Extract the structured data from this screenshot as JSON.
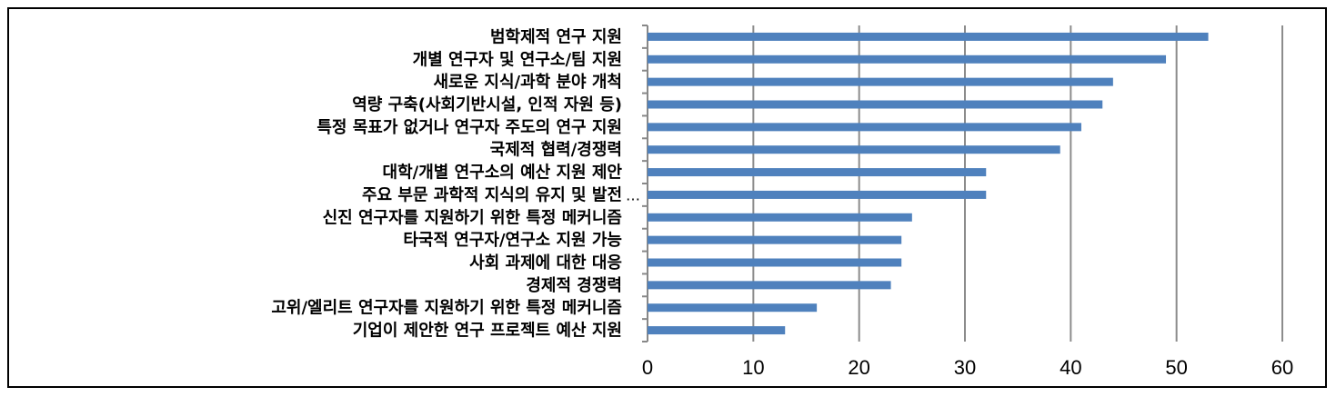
{
  "chart_data": {
    "type": "bar",
    "orientation": "horizontal",
    "categories": [
      "범학제적 연구 지원",
      "개별 연구자 및 연구소/팀 지원",
      "새로운 지식/과학 분야 개척",
      "역량 구축(사회기반시설, 인적 자원 등)",
      "특정 목표가 없거나 연구자 주도의 연구 지원",
      "국제적 협력/경쟁력",
      "대학/개별 연구소의 예산 지원 제안",
      "주요 부문 과학적 지식의 유지 및 발전",
      "신진 연구자를 지원하기 위한 특정 메커니즘",
      "타국적 연구자/연구소 지원 가능",
      "사회 과제에 대한 대응",
      "경제적 경쟁력",
      "고위/엘리트 연구자를 지원하기 위한 특정 메커니즘",
      "기업이 제안한 연구 프로젝트 예산 지원"
    ],
    "values": [
      53,
      49,
      44,
      43,
      41,
      39,
      32,
      32,
      25,
      24,
      24,
      23,
      16,
      13
    ],
    "xlim": [
      0,
      60
    ],
    "xticks": [
      "0",
      "10",
      "20",
      "30",
      "40",
      "50",
      "60"
    ],
    "truncation_note": "…",
    "bar_color": "#4F81BD",
    "grid": "vertical",
    "title": "",
    "xlabel": "",
    "ylabel": ""
  }
}
